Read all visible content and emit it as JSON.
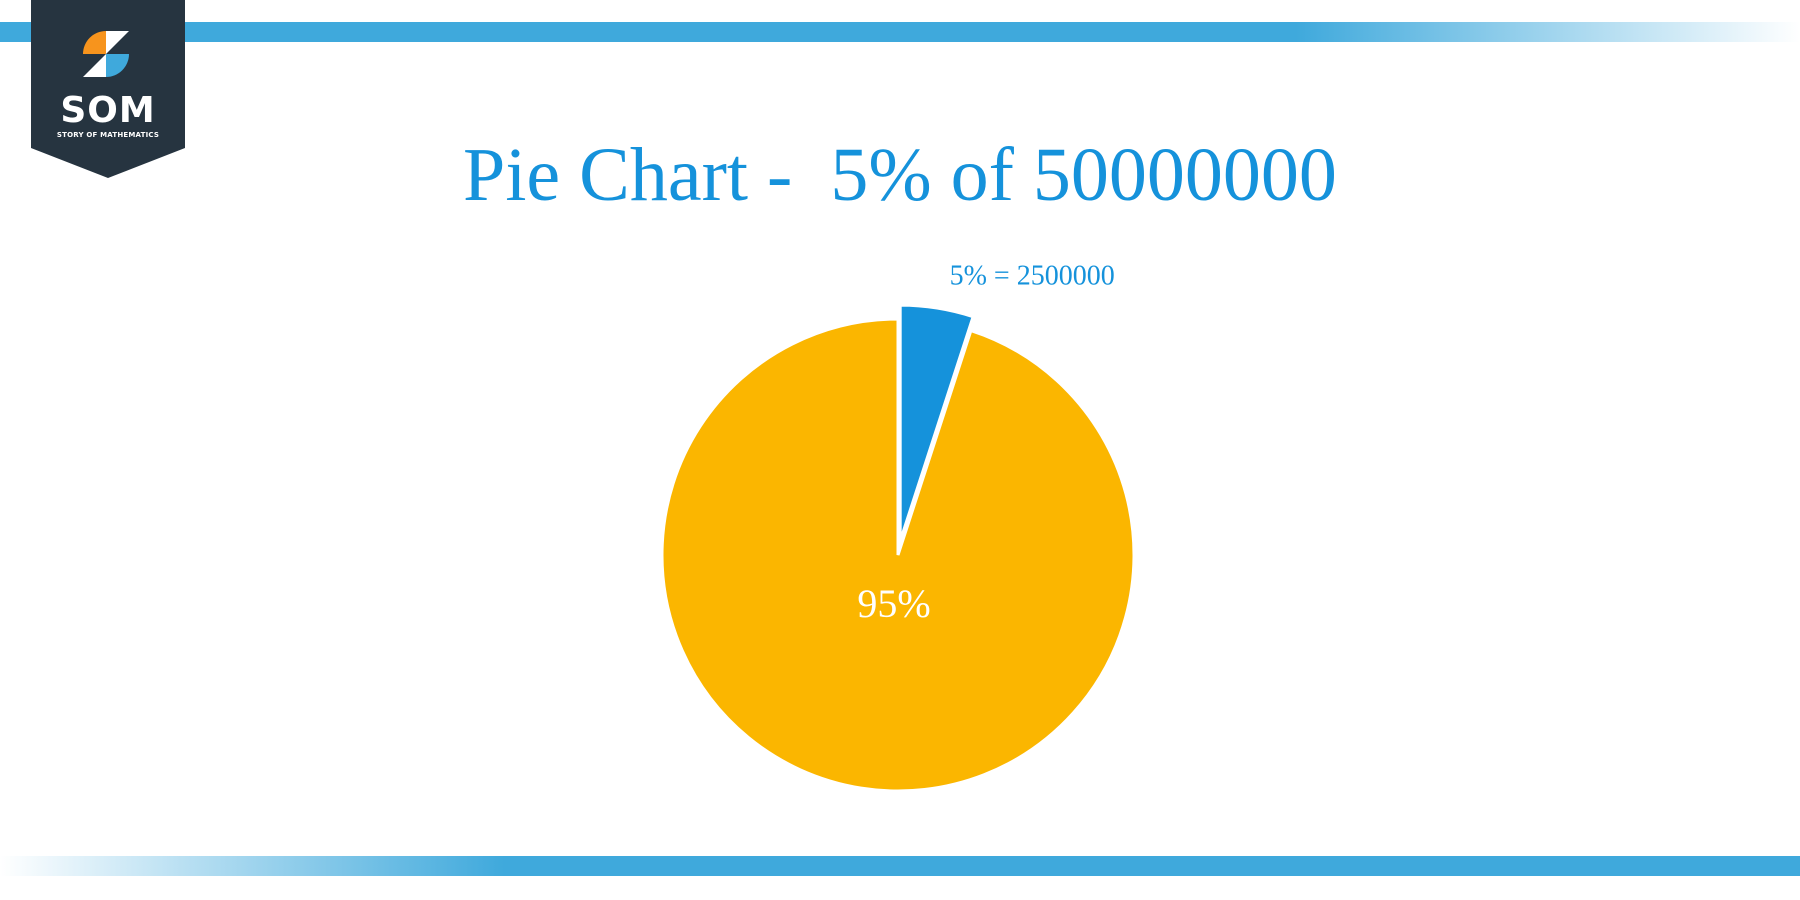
{
  "brand": {
    "logo_text": "SOM",
    "logo_subtext": "STORY OF MATHEMATICS",
    "logo_bg_color": "#263440",
    "logo_orange": "#f7941d",
    "logo_blue": "#3fa9dc",
    "bar_color": "#3fa9dc"
  },
  "chart_data": {
    "type": "pie",
    "title": "Pie Chart -  5% of 50000000",
    "slices": [
      {
        "label": "5% = 2500000",
        "percent": 5,
        "value": 2500000,
        "color": "#1592db",
        "exploded": true
      },
      {
        "label": "95%",
        "percent": 95,
        "value": 47500000,
        "color": "#fbb600",
        "exploded": false
      }
    ],
    "total": 50000000
  }
}
